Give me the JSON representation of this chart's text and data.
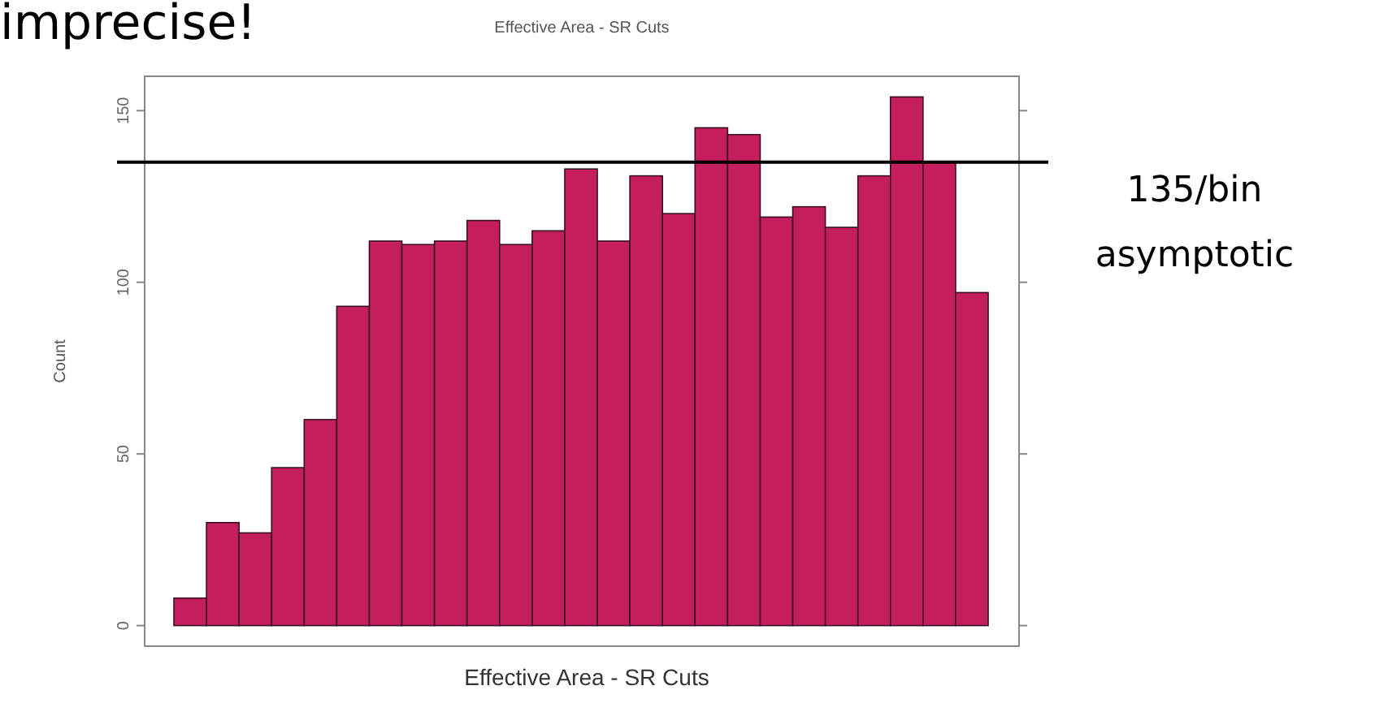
{
  "chart_data": {
    "type": "bar",
    "title": "Effective Area - SR Cuts",
    "xlabel": "Effective Area - SR Cuts",
    "ylabel": "Count",
    "annotations": [
      "imprecise!"
    ],
    "categories": [
      null,
      null,
      null,
      null,
      null,
      null,
      null,
      null,
      null,
      null,
      null,
      null,
      null,
      null,
      null,
      null,
      null,
      null,
      null,
      null,
      null,
      null,
      null,
      null,
      null
    ],
    "values": [
      8,
      30,
      27,
      46,
      60,
      93,
      112,
      111,
      112,
      118,
      111,
      115,
      133,
      112,
      131,
      120,
      145,
      143,
      119,
      122,
      116,
      131,
      154,
      135,
      97
    ],
    "color": "#c41e5c",
    "ylim": [
      -6,
      160
    ],
    "yticks": [
      0,
      50,
      100,
      150
    ],
    "ref_lines": [
      {
        "axis": "y",
        "value": 135,
        "label": "135/bin asymptotic",
        "color": "#000000"
      }
    ],
    "grid": false
  }
}
